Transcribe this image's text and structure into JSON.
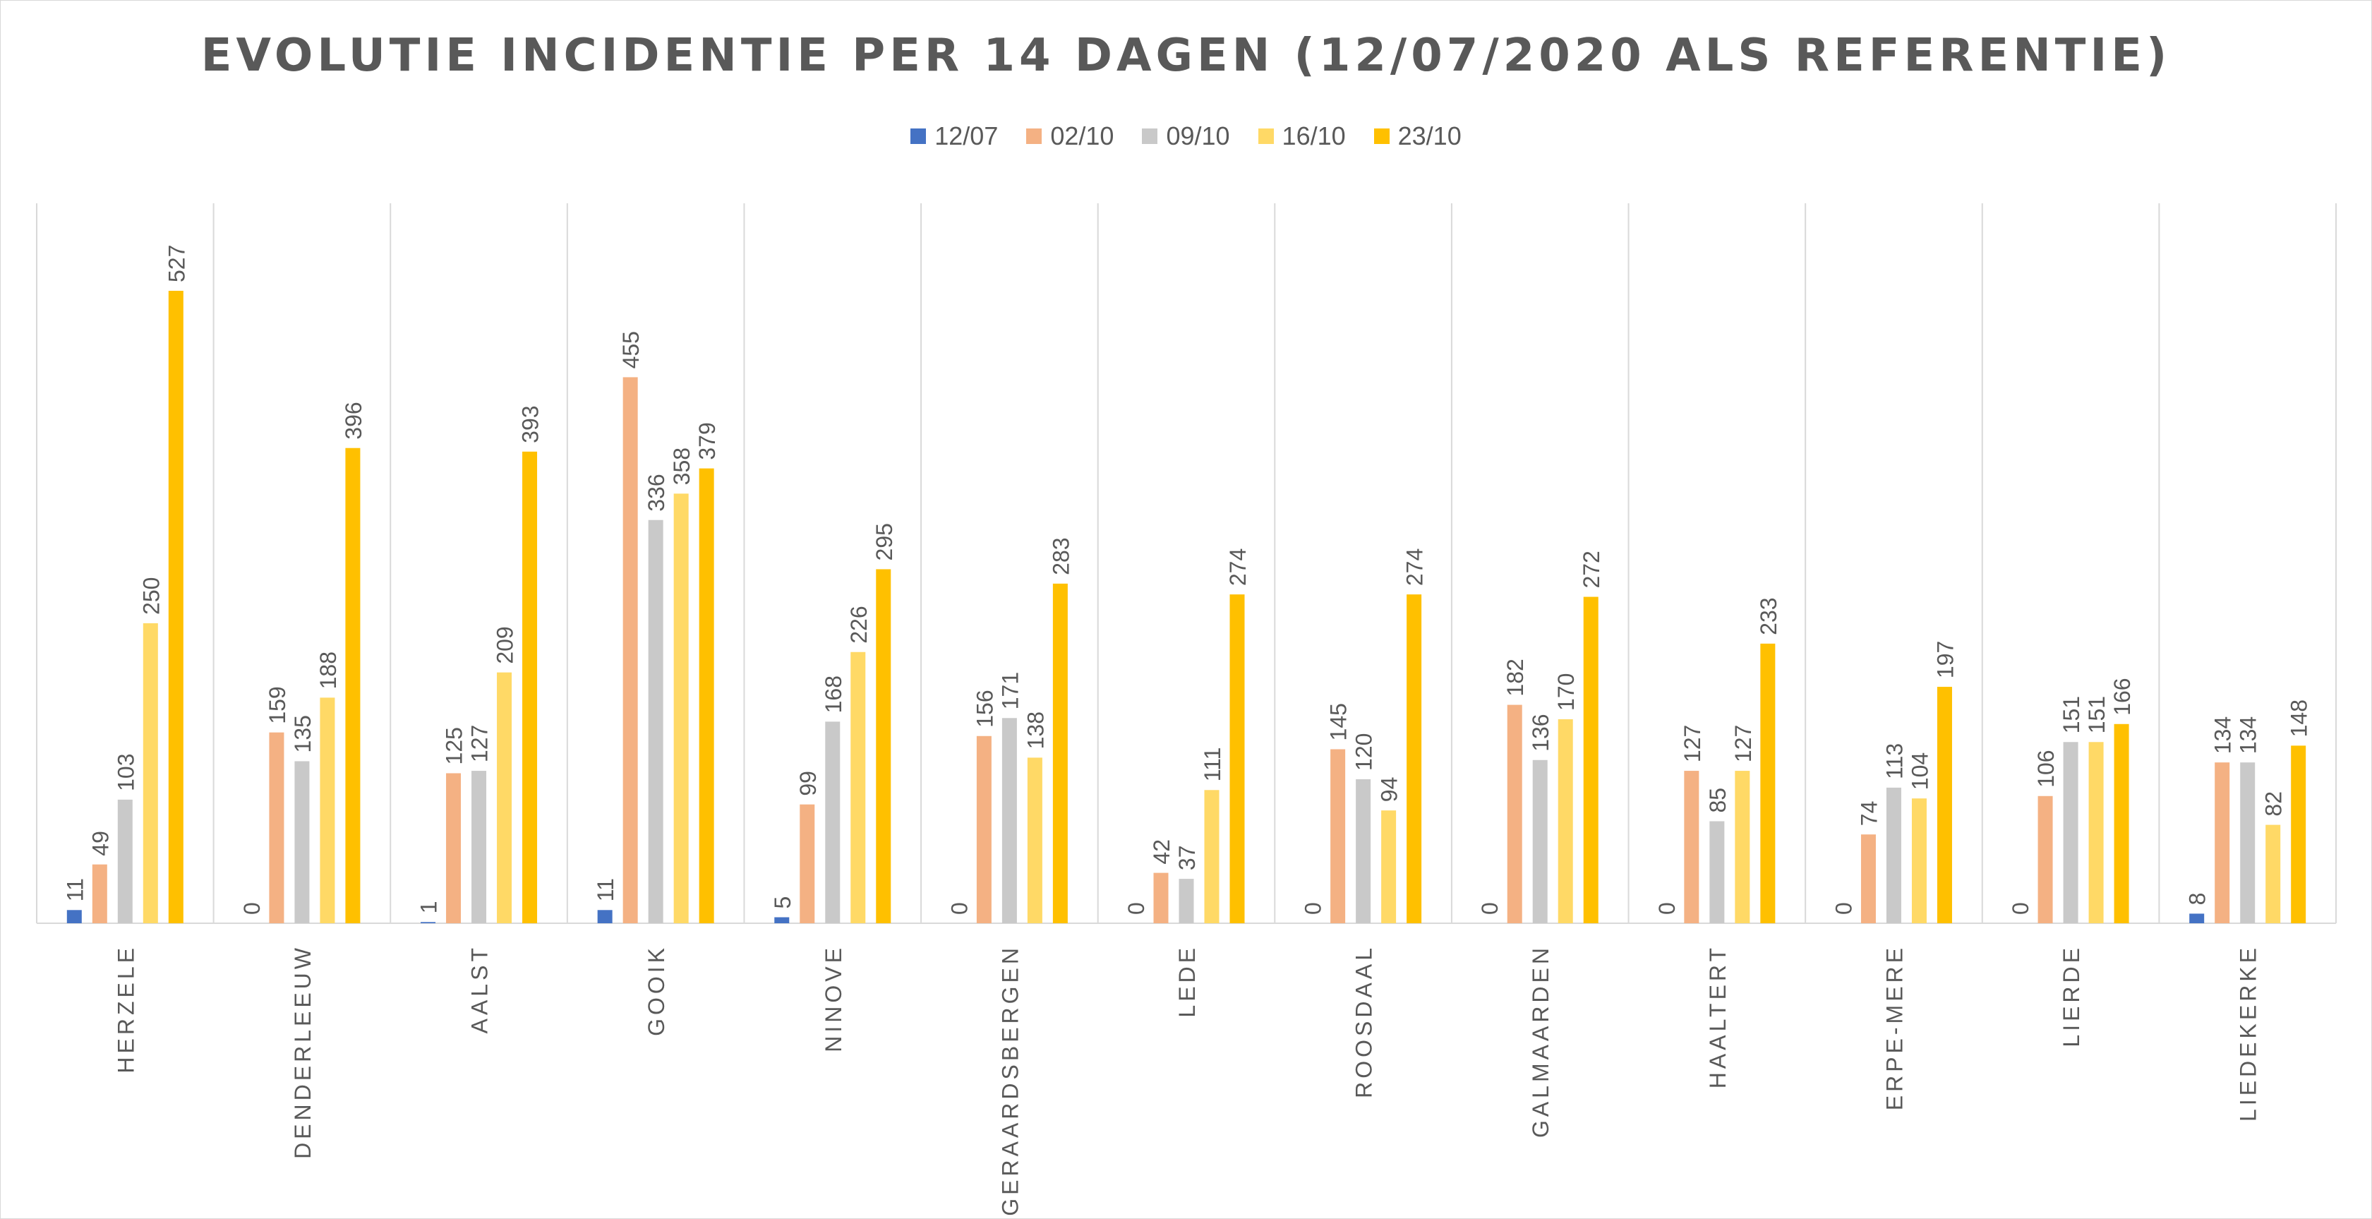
{
  "chart_data": {
    "type": "bar",
    "title": "EVOLUTIE INCIDENTIE PER 14 DAGEN (12/07/2020 ALS REFERENTIE)",
    "categories": [
      "HERZELE",
      "DENDERLEEUW",
      "AALST",
      "GOOIK",
      "NINOVE",
      "GERAARDSBERGEN",
      "LEDE",
      "ROOSDAAL",
      "GALMAARDEN",
      "HAALTERT",
      "ERPE-MERE",
      "LIERDE",
      "LIEDEKERKE"
    ],
    "series": [
      {
        "name": "12/07",
        "color": "#4472C4",
        "values": [
          11,
          0,
          1,
          11,
          5,
          0,
          0,
          0,
          0,
          0,
          0,
          0,
          8
        ]
      },
      {
        "name": "02/10",
        "color": "#F4B183",
        "values": [
          49,
          159,
          125,
          455,
          99,
          156,
          42,
          145,
          182,
          127,
          74,
          106,
          134
        ]
      },
      {
        "name": "09/10",
        "color": "#C9C9C9",
        "values": [
          103,
          135,
          127,
          336,
          168,
          171,
          37,
          120,
          136,
          85,
          113,
          151,
          134
        ]
      },
      {
        "name": "16/10",
        "color": "#FFD966",
        "values": [
          250,
          188,
          209,
          358,
          226,
          138,
          111,
          94,
          170,
          127,
          104,
          151,
          82
        ]
      },
      {
        "name": "23/10",
        "color": "#FFC000",
        "values": [
          527,
          396,
          393,
          379,
          295,
          283,
          274,
          274,
          272,
          233,
          197,
          166,
          148
        ]
      }
    ],
    "ylim": [
      0,
      600
    ],
    "legend_position": "top",
    "grid": "vertical category separators"
  }
}
